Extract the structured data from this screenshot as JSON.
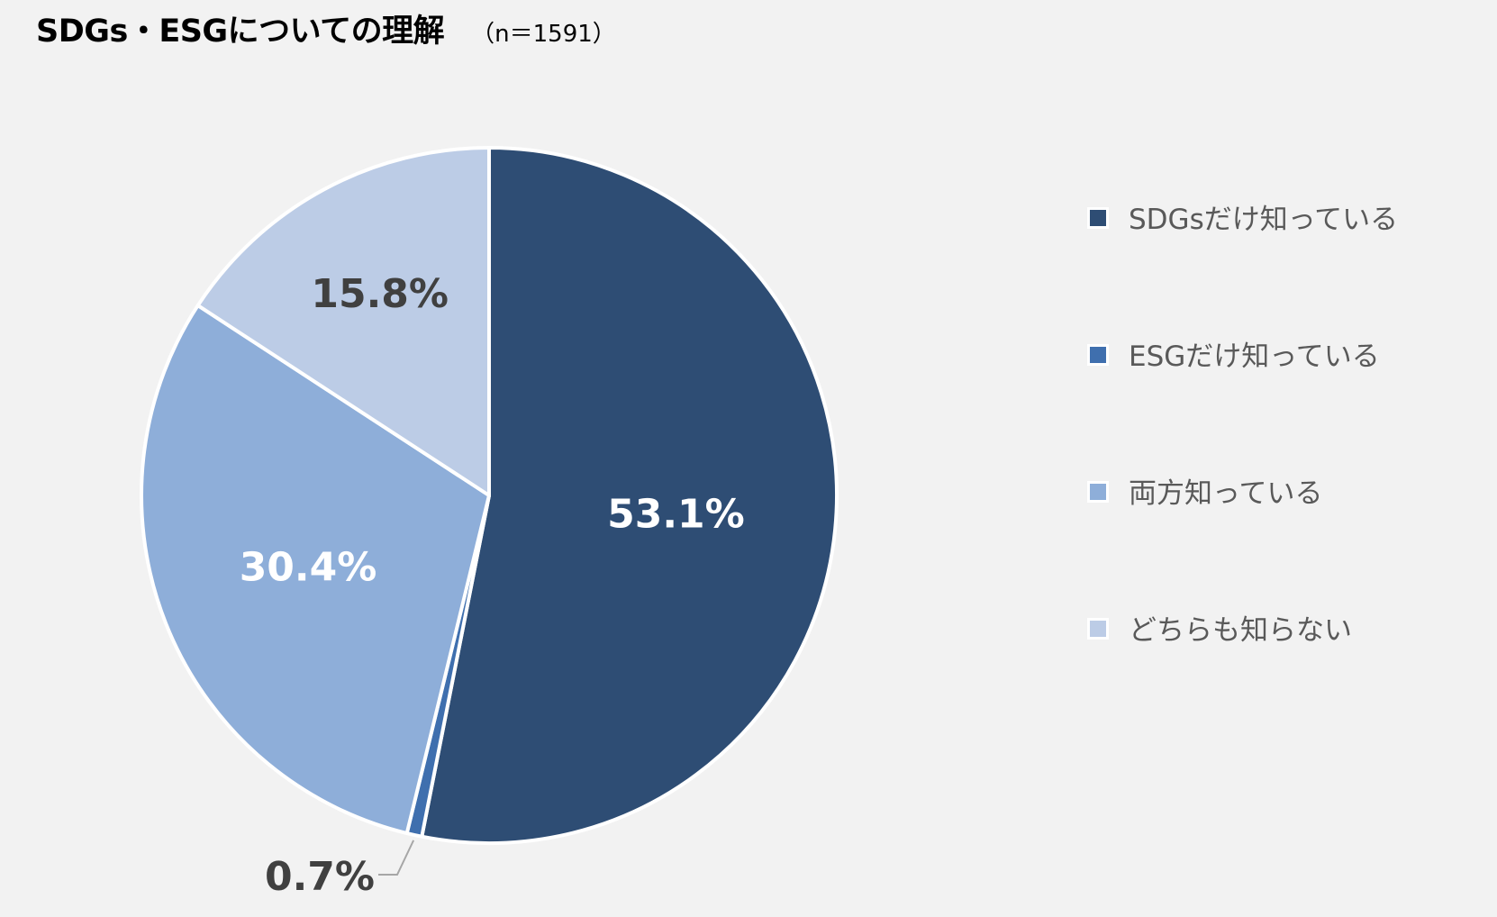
{
  "header": {
    "title": "SDGs・ESGについての理解",
    "subtitle": "（n＝1591）"
  },
  "chart_data": {
    "type": "pie",
    "title": "SDGs・ESGについての理解",
    "subtitle": "（n＝1591）",
    "categories": [
      "SDGsだけ知っている",
      "ESGだけ知っている",
      "両方知っている",
      "どちらも知らない"
    ],
    "values": [
      53.1,
      0.7,
      30.4,
      15.8
    ],
    "labels": [
      "53.1%",
      "0.7%",
      "30.4%",
      "15.8%"
    ],
    "colors": [
      "#2e4d74",
      "#3f6fae",
      "#8eaed9",
      "#bccce6"
    ],
    "label_colors": [
      "#ffffff",
      "#404040",
      "#ffffff",
      "#404040"
    ],
    "start_angle_deg": 0,
    "direction": "clockwise",
    "legend_position": "right"
  },
  "legend": {
    "items": [
      {
        "label": "SDGsだけ知っている",
        "color": "#2e4d74"
      },
      {
        "label": "ESGだけ知っている",
        "color": "#3f6fae"
      },
      {
        "label": "両方知っている",
        "color": "#8eaed9"
      },
      {
        "label": "どちらも知らない",
        "color": "#bccce6"
      }
    ]
  }
}
